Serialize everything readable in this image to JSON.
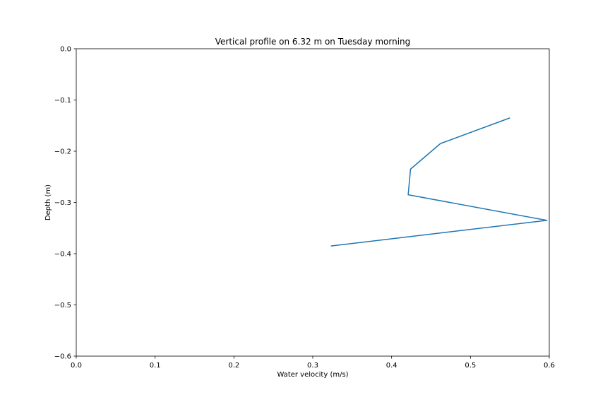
{
  "chart_data": {
    "type": "line",
    "title": "Vertical profile on 6.32 m on Tuesday morning",
    "xlabel": "Water velocity (m/s)",
    "ylabel": "Depth (m)",
    "xlim": [
      0.0,
      0.6
    ],
    "ylim": [
      -0.6,
      0.0
    ],
    "xticks": [
      "0.0",
      "0.1",
      "0.2",
      "0.3",
      "0.4",
      "0.5",
      "0.6"
    ],
    "yticks": [
      "0.0",
      "−0.1",
      "−0.2",
      "−0.3",
      "−0.4",
      "−0.5",
      "−0.6"
    ],
    "grid": false,
    "series": [
      {
        "color": "#1f77b4",
        "x": [
          0.55,
          0.462,
          0.424,
          0.421,
          0.597,
          0.323
        ],
        "y": [
          -0.135,
          -0.185,
          -0.235,
          -0.285,
          -0.335,
          -0.385
        ]
      }
    ]
  }
}
